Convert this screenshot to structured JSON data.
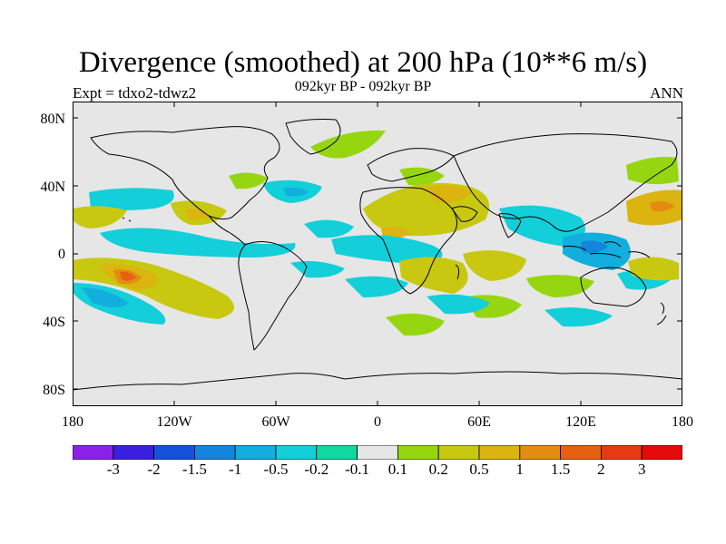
{
  "title": "Divergence (smoothed) at 200 hPa (10**6 m/s)",
  "subtitle_left": "Expt = tdxo2-tdwz2",
  "subtitle_center": "092kyr BP - 092kyr BP",
  "subtitle_right": "ANN",
  "axes": {
    "lat_labels": [
      "80N",
      "40N",
      "0",
      "40S",
      "80S"
    ],
    "lon_labels": [
      "180",
      "120W",
      "60W",
      "0",
      "60E",
      "120E",
      "180"
    ]
  },
  "colorbar": {
    "labels": [
      "-3",
      "-2",
      "-1.5",
      "-1",
      "-0.5",
      "-0.2",
      "-0.1",
      "0.1",
      "0.2",
      "0.5",
      "1",
      "1.5",
      "2",
      "3"
    ],
    "colors": [
      "#8a21e8",
      "#3a1fe0",
      "#1452dc",
      "#1485dc",
      "#12aede",
      "#12cfd9",
      "#10d8a0",
      "#e6e6e6",
      "#96d610",
      "#c8c810",
      "#dcb410",
      "#e28c10",
      "#e66010",
      "#e63a10",
      "#e60a0a"
    ]
  },
  "map_colors": {
    "background": "#e6e6e6",
    "coastline": "#000000"
  }
}
